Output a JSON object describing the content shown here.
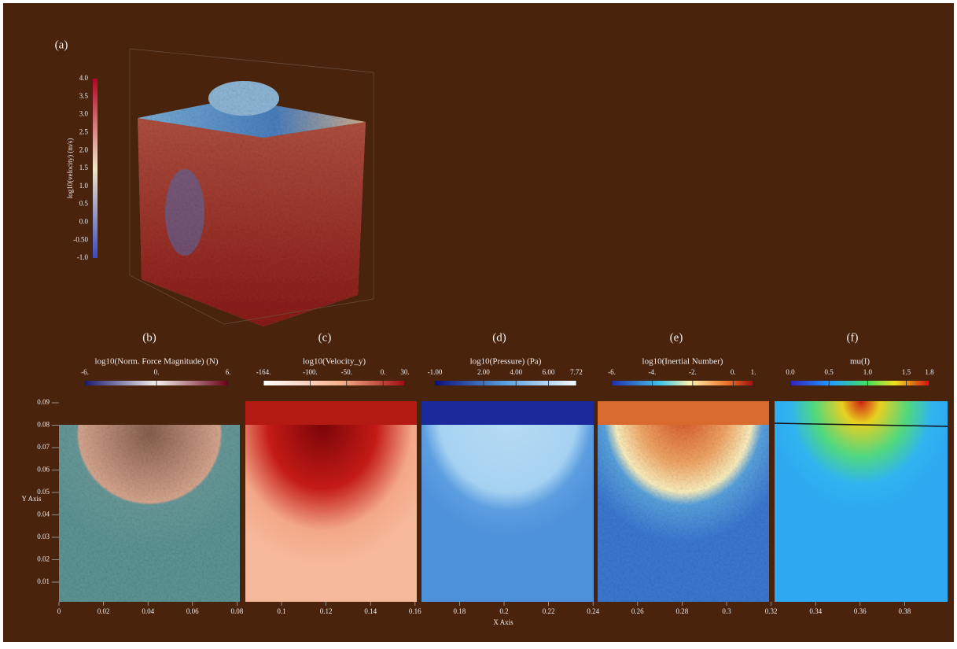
{
  "panels": [
    {
      "label": "(a)",
      "colorbar_title": "log10(velocity) (m/s)",
      "colorbar_ticks": [
        "4.0",
        "3.5",
        "3.0",
        "2.5",
        "2.0",
        "1.5",
        "1.0",
        "0.5",
        "0.0",
        "-0.50",
        "-1.0"
      ]
    },
    {
      "label": "(b)",
      "colorbar_title": "log10(Norm. Force Magnitude) (N)",
      "colorbar_ticks": [
        "-6.",
        "0.",
        "6."
      ]
    },
    {
      "label": "(c)",
      "colorbar_title": "log10(Velocity_y)",
      "colorbar_ticks": [
        "-164.",
        "-100.",
        "-50.",
        "0.",
        "30."
      ]
    },
    {
      "label": "(d)",
      "colorbar_title": "log10(Pressure) (Pa)",
      "colorbar_ticks": [
        "-1.00",
        "2.00",
        "4.00",
        "6.00",
        "7.72"
      ]
    },
    {
      "label": "(e)",
      "colorbar_title": "log10(Inertial Number)",
      "colorbar_ticks": [
        "-6.",
        "-4.",
        "-2.",
        "0.",
        "1."
      ]
    },
    {
      "label": "(f)",
      "colorbar_title": "mu(I)",
      "colorbar_ticks": [
        "0.0",
        "0.5",
        "1.0",
        "1.5",
        "1.8"
      ]
    }
  ],
  "x_axis": {
    "label": "X Axis",
    "ticks": [
      "0",
      "0.02",
      "0.04",
      "0.06",
      "0.08",
      "0.1",
      "0.12",
      "0.14",
      "0.16",
      "0.18",
      "0.2",
      "0.22",
      "0.24",
      "0.26",
      "0.28",
      "0.3",
      "0.32",
      "0.34",
      "0.36",
      "0.38"
    ]
  },
  "y_axis": {
    "label": "Y Axis",
    "ticks": [
      "0.09",
      "0.08",
      "0.07",
      "0.06",
      "0.05",
      "0.04",
      "0.03",
      "0.02",
      "0.01"
    ]
  }
}
